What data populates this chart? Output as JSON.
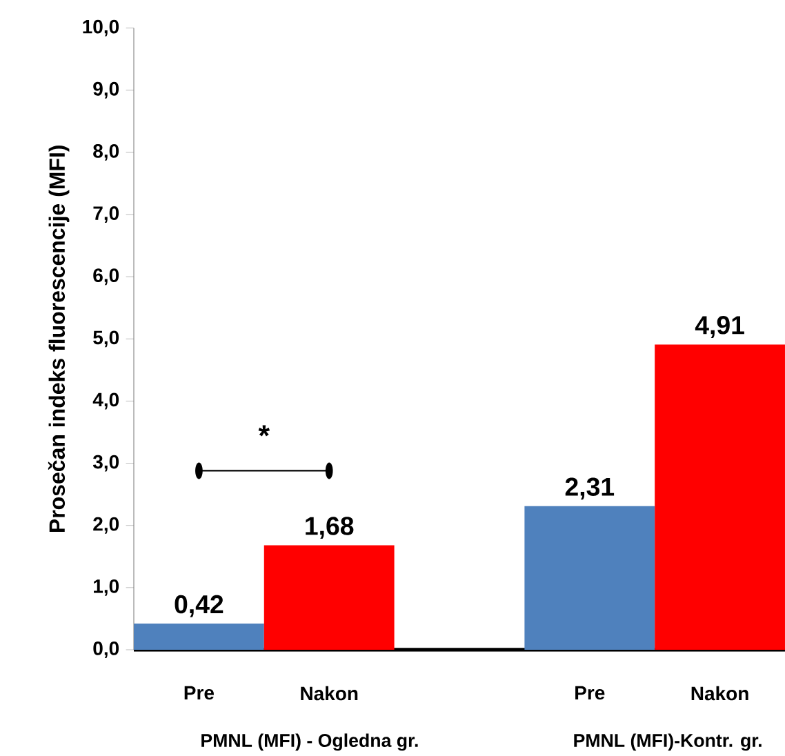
{
  "chart_data": {
    "type": "bar",
    "ylabel": "Prosečan indeks fluorescencije (MFI)",
    "categories": [
      "Pre",
      "Nakon",
      "Pre",
      "Nakon"
    ],
    "values": [
      0.42,
      1.68,
      2.31,
      4.91
    ],
    "colors": [
      "#4f81bd",
      "#ff0000",
      "#4f81bd",
      "#ff0000"
    ],
    "value_labels": [
      "0,42",
      "1,68",
      "2,31",
      "4,91"
    ],
    "ylim": [
      0,
      10
    ],
    "yticks": [
      {
        "value": 0,
        "label": "0,0"
      },
      {
        "value": 1,
        "label": "1,0"
      },
      {
        "value": 2,
        "label": "2,0"
      },
      {
        "value": 3,
        "label": "3,0"
      },
      {
        "value": 4,
        "label": "4,0"
      },
      {
        "value": 5,
        "label": "5,0"
      },
      {
        "value": 6,
        "label": "6,0"
      },
      {
        "value": 7,
        "label": "7,0"
      },
      {
        "value": 8,
        "label": "8,0"
      },
      {
        "value": 9,
        "label": "9,0"
      },
      {
        "value": 10,
        "label": "10,0"
      }
    ],
    "annotations": [
      "*",
      "PMNL (MFI) -  Ogledna gr.",
      "PMNL (MFI)-Kontr. gr."
    ],
    "grid": false
  }
}
